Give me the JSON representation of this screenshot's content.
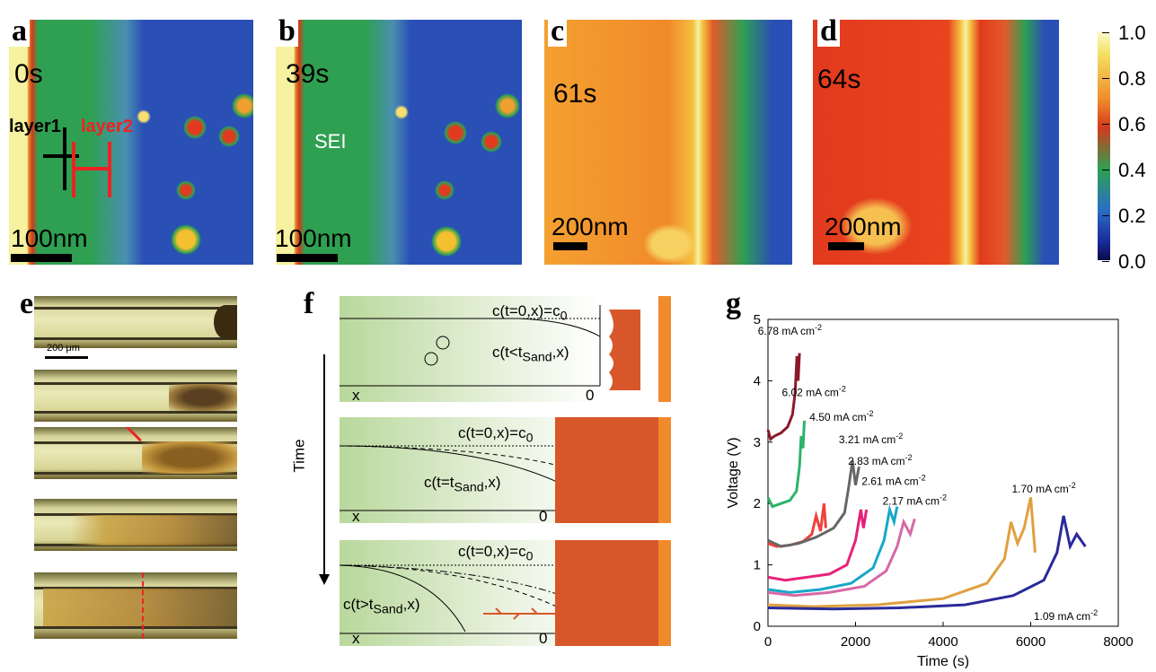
{
  "panels": {
    "a": {
      "letter": "a",
      "time": "0s",
      "scale": "100nm",
      "layer1": "layer1",
      "layer2": "layer2"
    },
    "b": {
      "letter": "b",
      "time": "39s",
      "scale": "100nm",
      "sei": "SEI"
    },
    "c": {
      "letter": "c",
      "time": "61s",
      "scale": "200nm"
    },
    "d": {
      "letter": "d",
      "time": "64s",
      "scale": "200nm"
    },
    "e": {
      "letter": "e",
      "scale": "200 μm"
    },
    "f": {
      "letter": "f",
      "time_axis": "Time",
      "c0": "c(t=0,x)=c",
      "c0_sub": "0",
      "curve1": "c(t<t",
      "curve2": "c(t=t",
      "curve3": "c(t>t",
      "sand": "Sand",
      "curve_tail": ",x)",
      "x": "x",
      "zero": "0"
    },
    "g": {
      "letter": "g"
    }
  },
  "colorbar": {
    "ticks": [
      "1.0",
      "0.8",
      "0.6",
      "0.4",
      "0.2",
      "0.0"
    ]
  },
  "colors": {
    "map_blue": "#2a4fb5",
    "map_green": "#2fa052",
    "map_red": "#e23a1e",
    "map_orange": "#f4a12a",
    "map_yellow": "#f6f2a0",
    "lithium": "#d8572a"
  },
  "chart_data": {
    "type": "line",
    "xlabel": "Time  (s)",
    "ylabel": "Voltage  (V)",
    "xlim": [
      0,
      8000
    ],
    "ylim": [
      0,
      5
    ],
    "xticks": [
      0,
      2000,
      4000,
      6000,
      8000
    ],
    "yticks": [
      0,
      1,
      2,
      3,
      4,
      5
    ],
    "series": [
      {
        "name": "6.78 mA cm",
        "color": "#8a1a2a",
        "x": [
          0,
          60,
          150,
          300,
          450,
          560,
          620,
          660,
          690,
          720
        ],
        "y": [
          3.2,
          3.05,
          3.1,
          3.15,
          3.25,
          3.45,
          3.8,
          4.4,
          4.0,
          4.45
        ]
      },
      {
        "name": "6.02 mA cm",
        "color": "#2cb36a",
        "x": [
          0,
          100,
          300,
          500,
          650,
          720,
          760,
          800,
          830
        ],
        "y": [
          2.1,
          1.95,
          2.0,
          2.05,
          2.2,
          2.6,
          3.1,
          2.9,
          3.35
        ]
      },
      {
        "name": "4.50 mA cm",
        "color": "#f0403a",
        "x": [
          0,
          200,
          500,
          800,
          1000,
          1100,
          1200,
          1280,
          1320
        ],
        "y": [
          1.35,
          1.3,
          1.32,
          1.38,
          1.5,
          1.8,
          1.55,
          2.0,
          1.6
        ]
      },
      {
        "name": "3.21 mA cm",
        "color": "#666666",
        "x": [
          0,
          300,
          700,
          1100,
          1500,
          1750,
          1850,
          1930,
          2000,
          2080
        ],
        "y": [
          1.4,
          1.3,
          1.35,
          1.45,
          1.6,
          1.85,
          2.3,
          2.7,
          2.3,
          2.6
        ]
      },
      {
        "name": "2.83 mA cm",
        "color": "#e8207a",
        "x": [
          0,
          400,
          900,
          1400,
          1800,
          2000,
          2120,
          2180,
          2250
        ],
        "y": [
          0.8,
          0.75,
          0.8,
          0.85,
          1.0,
          1.4,
          1.9,
          1.6,
          1.9
        ]
      },
      {
        "name": "2.61 mA cm",
        "color": "#18a8c8",
        "x": [
          0,
          500,
          1200,
          1900,
          2400,
          2650,
          2780,
          2880,
          2950
        ],
        "y": [
          0.6,
          0.55,
          0.6,
          0.7,
          0.95,
          1.4,
          1.9,
          1.7,
          1.95
        ]
      },
      {
        "name": "2.17 mA cm",
        "color": "#d868a8",
        "x": [
          0,
          600,
          1400,
          2200,
          2700,
          2950,
          3100,
          3250,
          3350
        ],
        "y": [
          0.55,
          0.5,
          0.55,
          0.65,
          0.9,
          1.3,
          1.7,
          1.5,
          1.75
        ]
      },
      {
        "name": "1.70 mA cm",
        "color": "#e0a040",
        "x": [
          0,
          1000,
          2500,
          4000,
          5000,
          5400,
          5550,
          5700,
          5850,
          6000,
          6100
        ],
        "y": [
          0.35,
          0.32,
          0.35,
          0.45,
          0.7,
          1.1,
          1.7,
          1.35,
          1.6,
          2.1,
          1.2
        ]
      },
      {
        "name": "1.09 mA cm",
        "color": "#2a2a9a",
        "x": [
          0,
          1500,
          3000,
          4500,
          5600,
          6300,
          6600,
          6750,
          6900,
          7050,
          7250
        ],
        "y": [
          0.3,
          0.28,
          0.3,
          0.35,
          0.5,
          0.75,
          1.2,
          1.8,
          1.3,
          1.5,
          1.3
        ]
      }
    ],
    "labels": [
      {
        "text": "6.78 mA cm",
        "sup": "-2",
        "tx": 500,
        "ty": 4.75
      },
      {
        "text": "6.02 mA cm",
        "sup": "-2",
        "tx": 1050,
        "ty": 3.75
      },
      {
        "text": "4.50 mA cm",
        "sup": "-2",
        "tx": 1680,
        "ty": 3.35
      },
      {
        "text": "3.21 mA cm",
        "sup": "-2",
        "tx": 2350,
        "ty": 2.98
      },
      {
        "text": "2.83 mA cm",
        "sup": "-2",
        "tx": 2560,
        "ty": 2.63
      },
      {
        "text": "2.61 mA cm",
        "sup": "-2",
        "tx": 2870,
        "ty": 2.3
      },
      {
        "text": "2.17 mA cm",
        "sup": "-2",
        "tx": 3350,
        "ty": 1.98
      },
      {
        "text": "1.70 mA cm",
        "sup": "-2",
        "tx": 6300,
        "ty": 2.18
      },
      {
        "text": "1.09 mA cm",
        "sup": "-2",
        "tx": 6800,
        "ty": 0.1
      }
    ]
  }
}
